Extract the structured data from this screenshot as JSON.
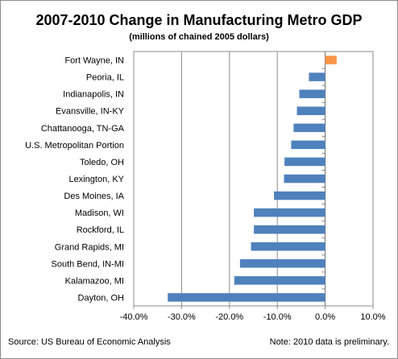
{
  "chart_data": {
    "type": "bar",
    "orientation": "horizontal",
    "title": "2007-2010 Change in Manufacturing Metro GDP",
    "subtitle": "(millions of chained  2005 dollars)",
    "categories": [
      "Fort Wayne, IN",
      "Peoria, IL",
      "Indianapolis, IN",
      "Evansville, IN-KY",
      "Chattanooga, TN-GA",
      "U.S. Metropolitan Portion",
      "Toledo, OH",
      "Lexington, KY",
      "Des Moines, IA",
      "Madison, WI",
      "Rockford, IL",
      "Grand Rapids, MI",
      "South Bend, IN-MI",
      "Kalamazoo, MI",
      "Dayton, OH"
    ],
    "values": [
      2.4,
      -3.4,
      -5.4,
      -5.9,
      -6.6,
      -7.1,
      -8.5,
      -8.6,
      -10.7,
      -14.9,
      -14.9,
      -15.5,
      -17.8,
      -19.0,
      -32.9
    ],
    "xlim": [
      -40,
      10
    ],
    "xticks": [
      -40,
      -30,
      -20,
      -10,
      0,
      10
    ],
    "xtick_labels": [
      "-40.0%",
      "-30.0%",
      "-20.0%",
      "-10.0%",
      "0.0%",
      "10.0%"
    ],
    "grid": "vertical",
    "colors": {
      "negative": "#4f81bd",
      "positive": "#f79646",
      "grid": "#8c8c8c"
    }
  },
  "footer": {
    "source": "Source: US Bureau of Economic Analysis",
    "note": "Note: 2010 data is preliminary."
  }
}
